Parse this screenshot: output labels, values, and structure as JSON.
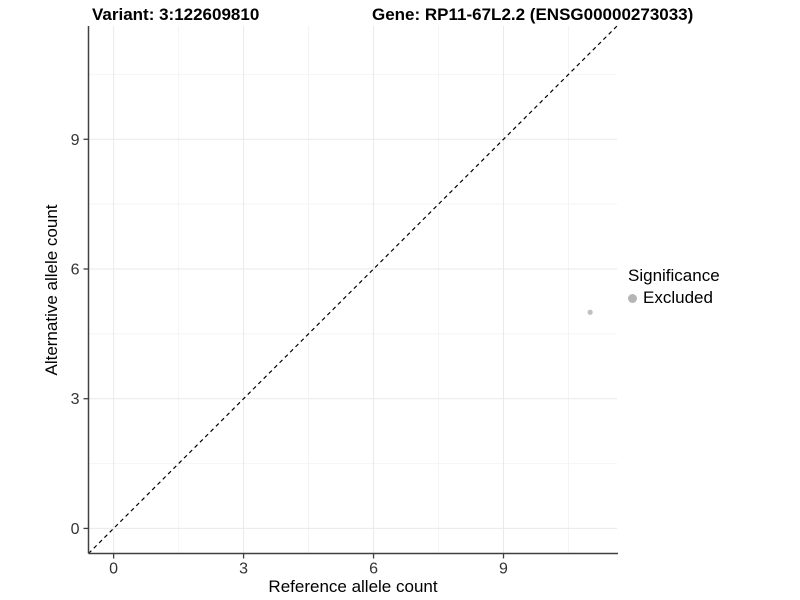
{
  "chart_data": {
    "type": "scatter",
    "title_left": "Variant: 3:122609810",
    "title_right": "Gene: RP11-67L2.2 (ENSG00000273033)",
    "xlabel": "Reference allele count",
    "ylabel": "Alternative allele count",
    "x_ticks": [
      0,
      3,
      6,
      9
    ],
    "y_ticks": [
      0,
      3,
      6,
      9
    ],
    "minor_breaks": [
      1.5,
      4.5,
      7.5,
      10.5
    ],
    "xlim": [
      -0.58,
      11.62
    ],
    "ylim": [
      -0.58,
      11.62
    ],
    "grid": true,
    "identity_line": {
      "style": "dashed",
      "color": "#000000",
      "equation": "y = x"
    },
    "points": [
      {
        "x": 11,
        "y": 5,
        "significance": "Excluded",
        "color": "#c0c0c0"
      }
    ],
    "legend": {
      "title": "Significance",
      "position": "right",
      "items": [
        {
          "label": "Excluded",
          "color": "#b5b5b5",
          "marker": "circle"
        }
      ]
    }
  },
  "colors": {
    "background": "#ffffff",
    "point": "#c0c0c0",
    "legend_dot": "#b5b5b5",
    "axis_line": "#404040",
    "tick_label": "#333333",
    "grid_major": "#e9e9e9",
    "grid_minor": "#f4f4f4",
    "diagonal": "#000000",
    "title_text": "#000000"
  }
}
